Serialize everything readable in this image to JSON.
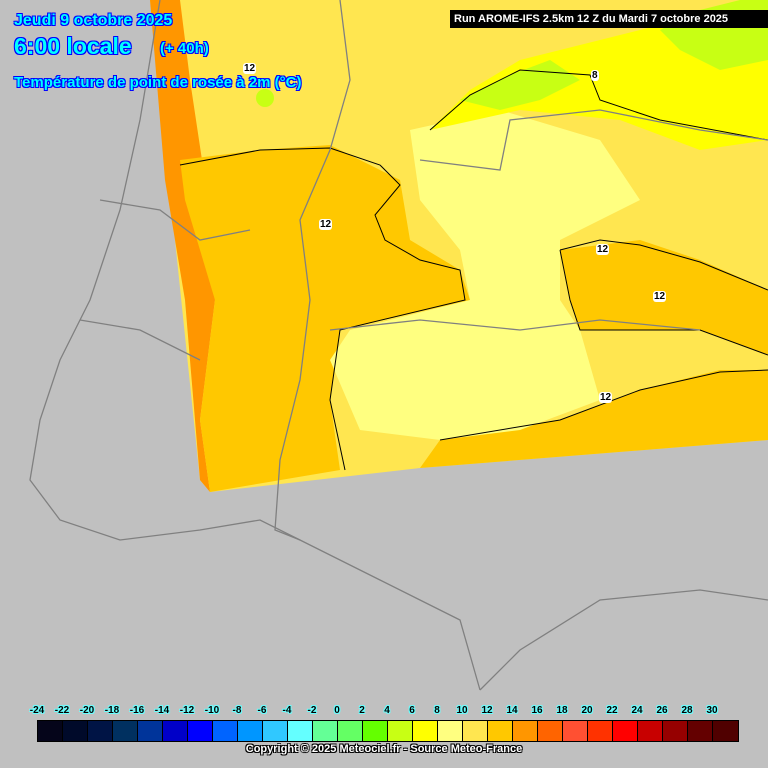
{
  "header": {
    "date": "Jeudi 9 octobre 2025",
    "time": "6:00 locale",
    "lead": "(+ 40h)",
    "parameter": "Température de point de rosée à 2m (°C)"
  },
  "run_banner": "Run AROME-IFS 2.5km 12 Z du Mardi 7 octobre 2025",
  "contour_labels": [
    "12",
    "12",
    "12",
    "12",
    "12",
    "8"
  ],
  "legend": {
    "ticks": [
      "-24",
      "-22",
      "-20",
      "-18",
      "-16",
      "-14",
      "-12",
      "-10",
      "-8",
      "-6",
      "-4",
      "-2",
      "0",
      "2",
      "4",
      "6",
      "8",
      "10",
      "12",
      "14",
      "16",
      "18",
      "20",
      "22",
      "24",
      "26",
      "28",
      "30"
    ],
    "colors": [
      "#05051a",
      "#000a2a",
      "#001445",
      "#003060",
      "#00349a",
      "#0000c8",
      "#0000ff",
      "#0064ff",
      "#0096ff",
      "#30c8ff",
      "#64ffff",
      "#64ff96",
      "#64ff64",
      "#64ff00",
      "#c8ff14",
      "#ffff00",
      "#ffff80",
      "#ffe650",
      "#ffc800",
      "#ff9600",
      "#ff6400",
      "#ff5032",
      "#ff3200",
      "#ff0000",
      "#c80000",
      "#960000",
      "#640000",
      "#500000"
    ]
  },
  "copyright": "Copyright © 2025 Meteociel.fr - Source Meteo-France",
  "colors": {
    "land": "#c0c0c0",
    "border": "#808080",
    "contour": "#000000"
  }
}
